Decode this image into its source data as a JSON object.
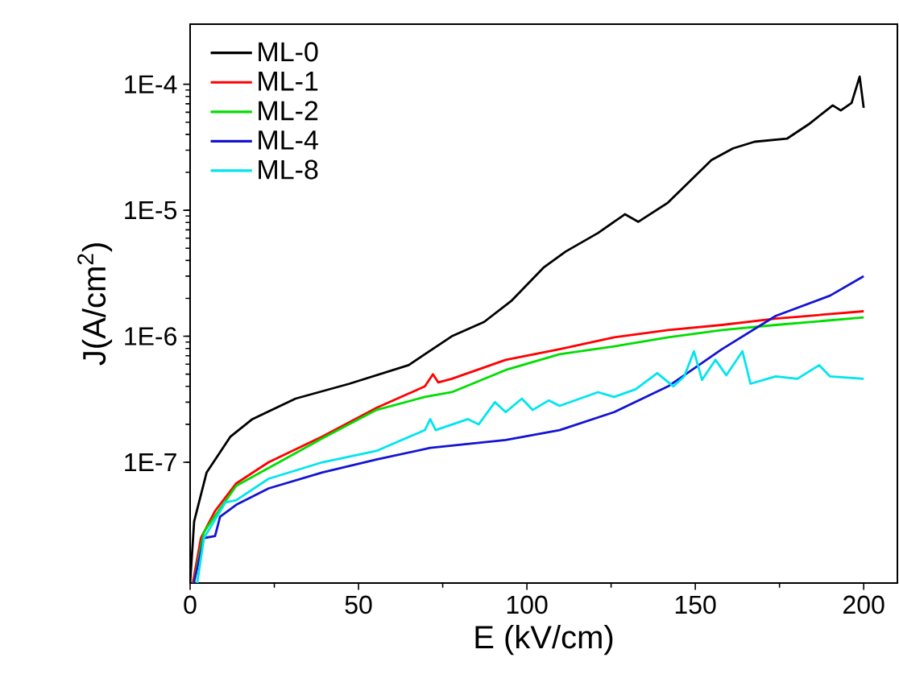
{
  "chart_data": {
    "type": "line",
    "xlabel": "E (kV/cm)",
    "ylabel": "J(A/cm$^{2}$)",
    "log": "y",
    "xlim": [
      0,
      210
    ],
    "ylim": [
      1.1e-08,
      0.0003
    ],
    "xticks": [
      0,
      50,
      100,
      150,
      200
    ],
    "yticks": [
      {
        "value": 1e-07,
        "label": "1E-7"
      },
      {
        "value": 1e-06,
        "label": "1E-6"
      },
      {
        "value": 1e-05,
        "label": "1E-5"
      },
      {
        "value": 0.0001,
        "label": "1E-4"
      }
    ],
    "legend": "top left",
    "grid": false,
    "series": [
      {
        "name": "ML-0",
        "color": "#000000",
        "x": [
          0,
          1.2,
          4.9,
          12,
          18.5,
          31.3,
          47.3,
          64.9,
          69.7,
          77.7,
          87.3,
          95.3,
          104.9,
          111.5,
          121.1,
          129.1,
          133.1,
          141.9,
          154.8,
          161.2,
          167.6,
          177.2,
          183.6,
          190.8,
          193.2,
          196.4,
          198.8,
          200
        ],
        "values": [
          1.1e-08,
          3.4e-08,
          8.3e-08,
          1.6e-07,
          2.2e-07,
          3.2e-07,
          4.2e-07,
          5.9e-07,
          7.2e-07,
          1e-06,
          1.3e-06,
          1.9e-06,
          3.5e-06,
          4.7e-06,
          6.6e-06,
          9.3e-06,
          8.1e-06,
          1.15e-05,
          2.5e-05,
          3.1e-05,
          3.5e-05,
          3.7e-05,
          4.8e-05,
          6.8e-05,
          6.2e-05,
          7.1e-05,
          0.000115,
          6.5e-05
        ]
      },
      {
        "name": "ML-1",
        "color": "#ff0000",
        "x": [
          0.8,
          3.2,
          7.4,
          13.7,
          23.3,
          39.3,
          55.3,
          69.7,
          72.1,
          73.7,
          77.7,
          93.7,
          109.7,
          125.9,
          141.9,
          157.9,
          173.9,
          200
        ],
        "values": [
          1.1e-08,
          2.5e-08,
          4.1e-08,
          6.8e-08,
          1e-07,
          1.6e-07,
          2.7e-07,
          4e-07,
          5e-07,
          4.3e-07,
          4.6e-07,
          6.5e-07,
          7.9e-07,
          9.8e-07,
          1.12e-06,
          1.23e-06,
          1.38e-06,
          1.58e-06
        ]
      },
      {
        "name": "ML-2",
        "color": "#00dd00",
        "x": [
          1.1,
          4.1,
          13.7,
          39.3,
          55.3,
          69.7,
          77.7,
          93.7,
          109.7,
          125.9,
          141.9,
          157.9,
          173.9,
          200
        ],
        "values": [
          1.1e-08,
          2.8e-08,
          6.5e-08,
          1.55e-07,
          2.6e-07,
          3.3e-07,
          3.6e-07,
          5.4e-07,
          7.2e-07,
          8.3e-07,
          9.8e-07,
          1.12e-06,
          1.23e-06,
          1.41e-06
        ]
      },
      {
        "name": "ML-4",
        "color": "#1414d2",
        "x": [
          1.1,
          4.1,
          7.4,
          8.9,
          13.7,
          23.3,
          39.3,
          55.3,
          71.3,
          93.7,
          109.7,
          125.9,
          141.9,
          157.9,
          173.9,
          190,
          200
        ],
        "values": [
          1.1e-08,
          2.5e-08,
          2.6e-08,
          3.7e-08,
          4.6e-08,
          6.2e-08,
          8.3e-08,
          1.05e-07,
          1.3e-07,
          1.5e-07,
          1.8e-07,
          2.5e-07,
          4e-07,
          7.9e-07,
          1.45e-06,
          2.1e-06,
          3e-06
        ]
      },
      {
        "name": "ML-8",
        "color": "#00e5ee",
        "x": [
          2.1,
          4.1,
          10.5,
          13.7,
          23.3,
          39.3,
          55.3,
          69.7,
          71.3,
          72.9,
          82.5,
          85.7,
          90.5,
          93.7,
          98.5,
          101.7,
          106.5,
          109.7,
          121.1,
          125.9,
          132.3,
          138.7,
          143.5,
          146.7,
          149.6,
          152,
          156,
          159.2,
          164,
          166.4,
          173.9,
          180.3,
          186.8,
          190,
          200
        ],
        "values": [
          1.1e-08,
          2.5e-08,
          4.8e-08,
          5e-08,
          7.4e-08,
          1e-07,
          1.23e-07,
          1.8e-07,
          2.2e-07,
          1.8e-07,
          2.2e-07,
          2e-07,
          3e-07,
          2.5e-07,
          3.2e-07,
          2.6e-07,
          3.1e-07,
          2.8e-07,
          3.6e-07,
          3.3e-07,
          3.8e-07,
          5.1e-07,
          4e-07,
          4.8e-07,
          7.6e-07,
          4.5e-07,
          6.5e-07,
          4.9e-07,
          7.6e-07,
          4.2e-07,
          4.8e-07,
          4.6e-07,
          5.9e-07,
          4.8e-07,
          4.6e-07
        ]
      }
    ]
  }
}
